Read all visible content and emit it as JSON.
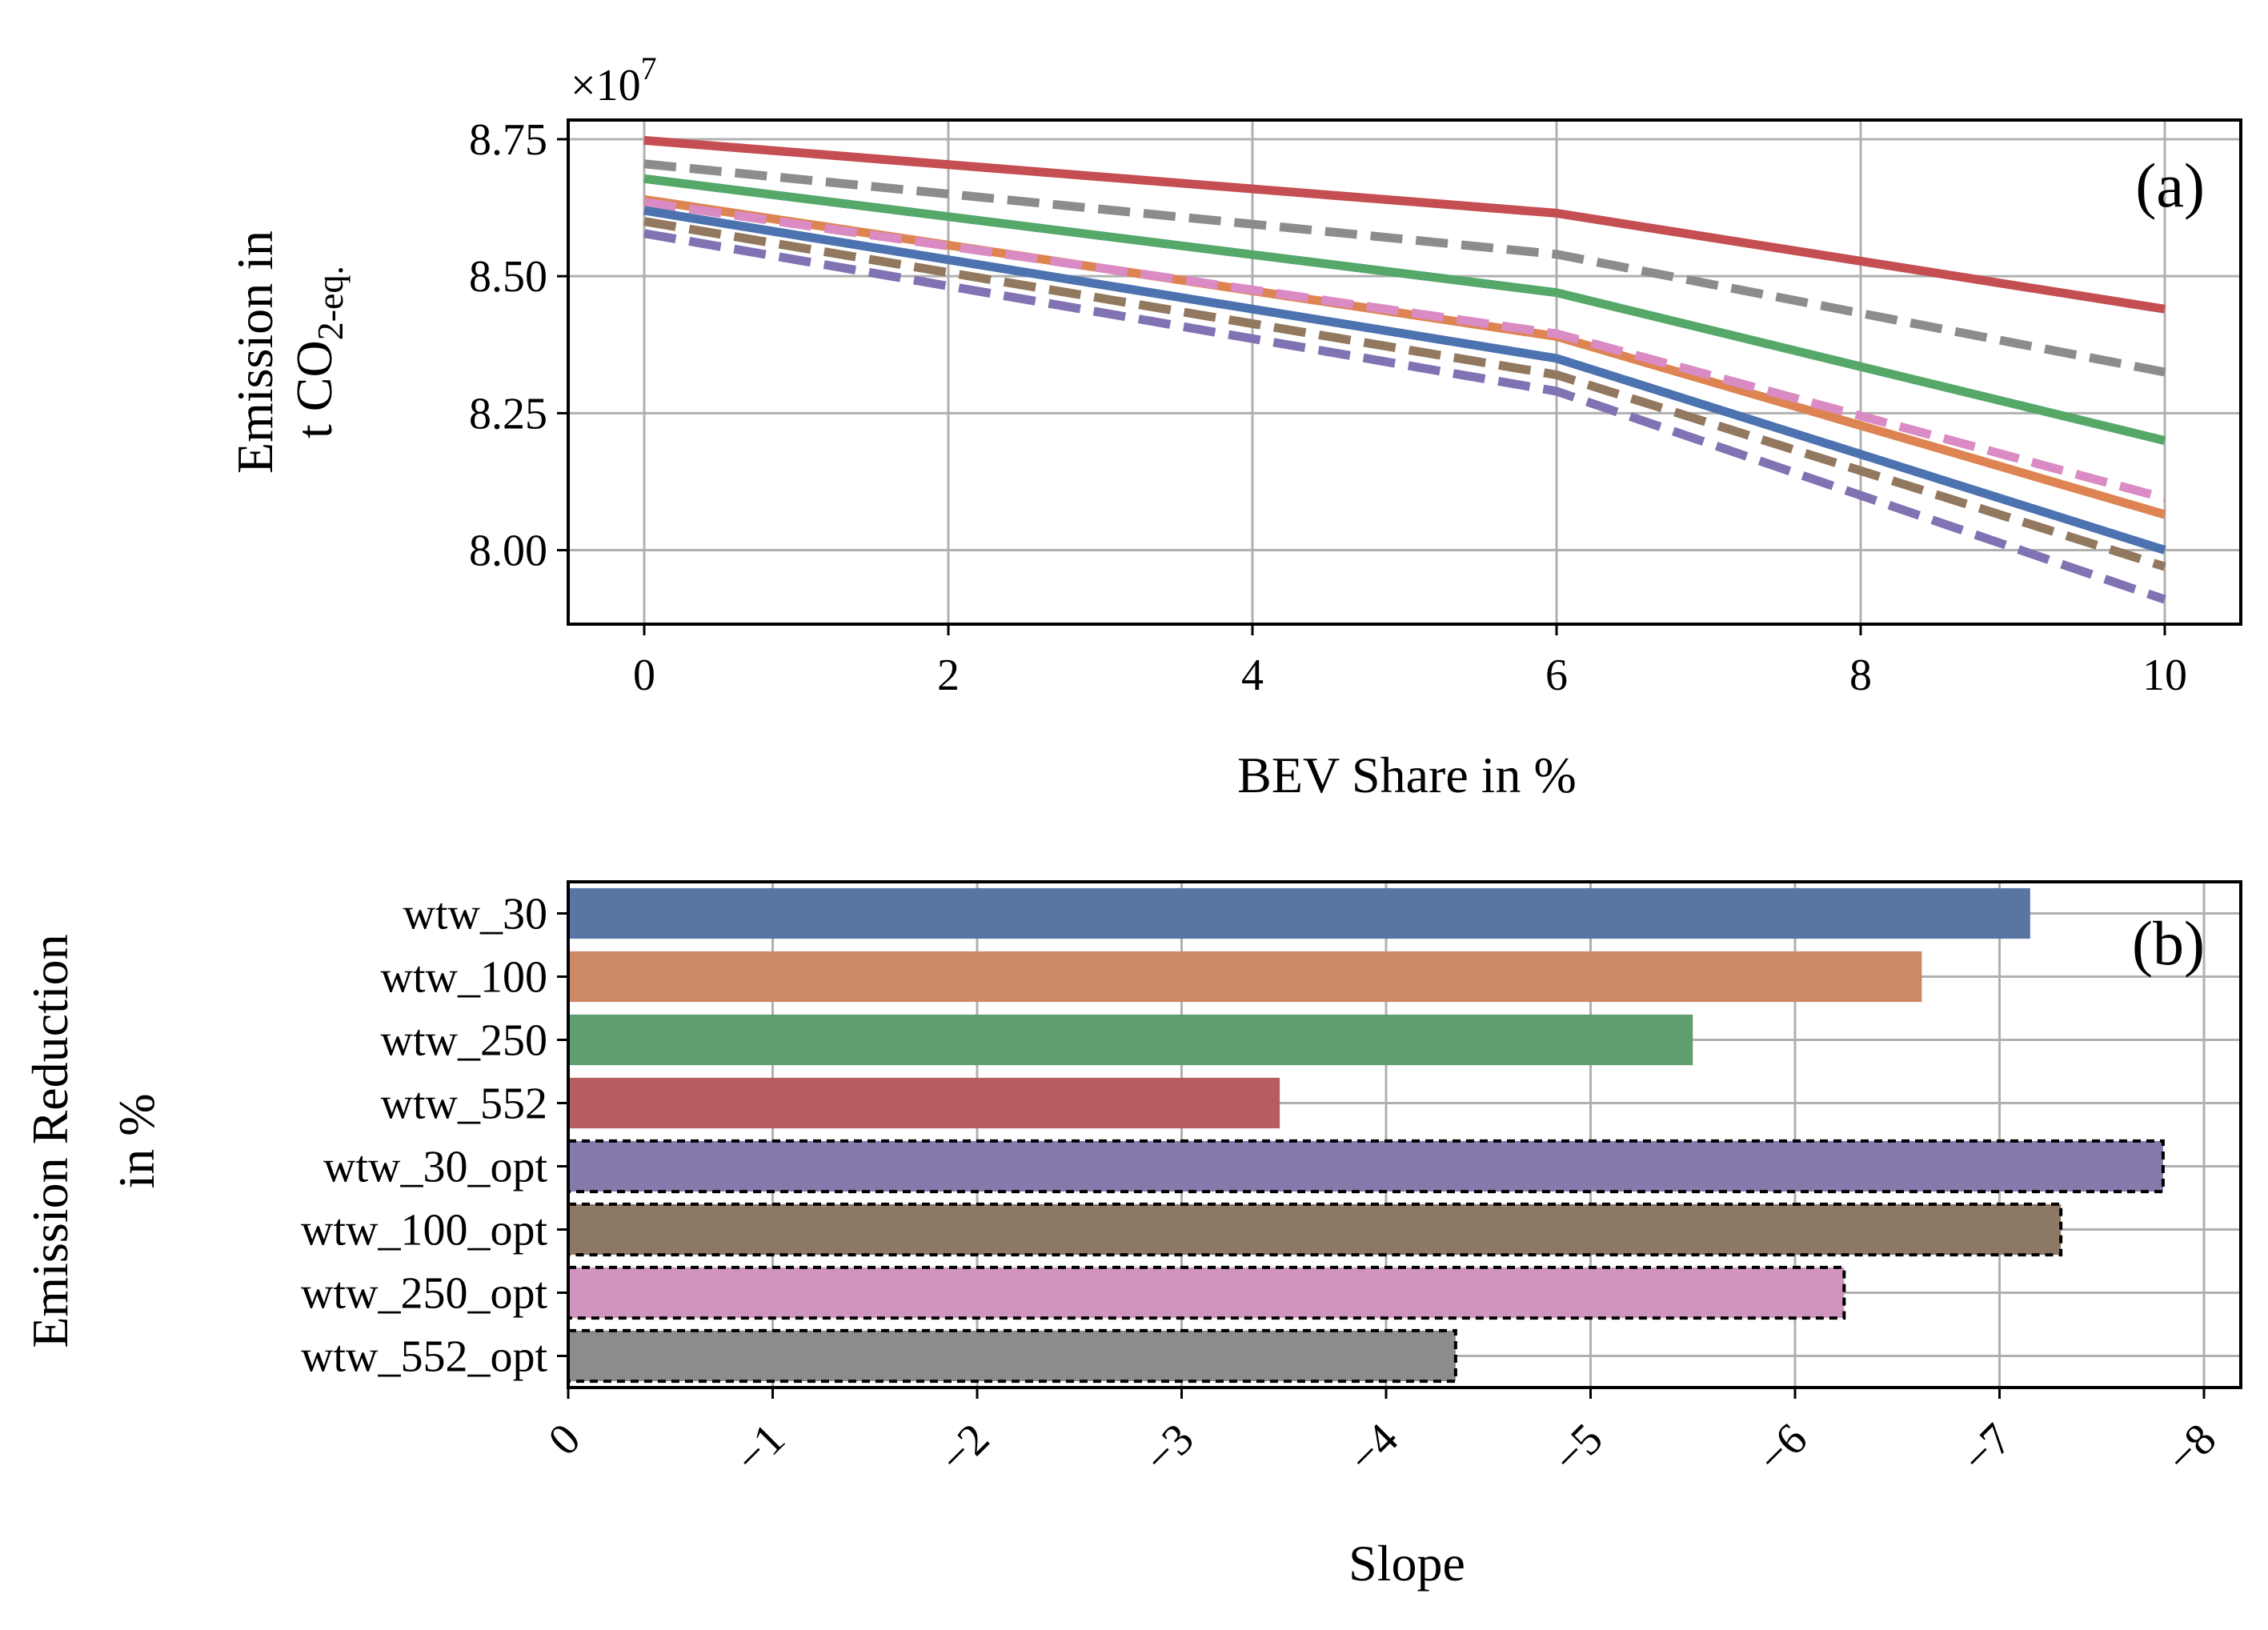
{
  "chart_data": [
    {
      "panel": "(a)",
      "type": "line",
      "xlabel": "BEV Share in %",
      "ylabel_line1": "Emission in",
      "ylabel_line2_prefix": "t CO",
      "ylabel_line2_sub": "2-eq.",
      "y_multiplier_prefix": "×10",
      "y_multiplier_exp": "7",
      "x": [
        0,
        6,
        10
      ],
      "xlim": [
        -0.5,
        10.5
      ],
      "ylim": [
        7.865,
        8.785
      ],
      "xticks": [
        0,
        2,
        4,
        6,
        8,
        10
      ],
      "xtick_labels": [
        "0",
        "2",
        "4",
        "6",
        "8",
        "10"
      ],
      "yticks": [
        8.0,
        8.25,
        8.5,
        8.75
      ],
      "ytick_labels": [
        "8.00",
        "8.25",
        "8.50",
        "8.75"
      ],
      "grid": true,
      "series": [
        {
          "name": "wtw_552_opt",
          "color": "#8c8c8c",
          "dash": "dashed",
          "values": [
            8.705,
            8.54,
            8.325
          ]
        },
        {
          "name": "wtw_552",
          "color": "#c44e52",
          "dash": "solid",
          "values": [
            8.748,
            8.615,
            8.44
          ]
        },
        {
          "name": "wtw_250",
          "color": "#55a868",
          "dash": "solid",
          "values": [
            8.678,
            8.47,
            8.2
          ]
        },
        {
          "name": "wtw_100",
          "color": "#dd8452",
          "dash": "solid",
          "values": [
            8.64,
            8.39,
            8.065
          ]
        },
        {
          "name": "wtw_250_opt",
          "color": "#da8bc3",
          "dash": "dashed",
          "values": [
            8.635,
            8.395,
            8.095
          ]
        },
        {
          "name": "wtw_30",
          "color": "#4c72b0",
          "dash": "solid",
          "values": [
            8.62,
            8.35,
            8.0
          ]
        },
        {
          "name": "wtw_100_opt",
          "color": "#937860",
          "dash": "dashed",
          "values": [
            8.6,
            8.32,
            7.97
          ]
        },
        {
          "name": "wtw_30_opt",
          "color": "#8172b3",
          "dash": "dashed",
          "values": [
            8.578,
            8.29,
            7.91
          ]
        }
      ]
    },
    {
      "panel": "(b)",
      "type": "bar",
      "orientation": "horizontal",
      "xlabel": "Slope",
      "ylabel_line1": "Emission Reduction",
      "ylabel_line2": "in %",
      "xlim": [
        0,
        -8.18
      ],
      "xticks": [
        0,
        -1,
        -2,
        -3,
        -4,
        -5,
        -6,
        -7,
        -8
      ],
      "xtick_labels": [
        "0",
        "−1",
        "−2",
        "−3",
        "−4",
        "−5",
        "−6",
        "−7",
        "−8"
      ],
      "grid": true,
      "categories": [
        "wtw_30",
        "wtw_100",
        "wtw_250",
        "wtw_552",
        "wtw_30_opt",
        "wtw_100_opt",
        "wtw_250_opt",
        "wtw_552_opt"
      ],
      "values": [
        -7.15,
        -6.62,
        -5.5,
        -3.48,
        -7.8,
        -7.3,
        -6.24,
        -4.34
      ],
      "colors": [
        "#5975a4",
        "#cc8963",
        "#5f9e6e",
        "#b55d60",
        "#857aab",
        "#8d7866",
        "#d095bf",
        "#8c8c8c"
      ],
      "dashed_outline": [
        false,
        false,
        false,
        false,
        true,
        true,
        true,
        true
      ]
    }
  ]
}
